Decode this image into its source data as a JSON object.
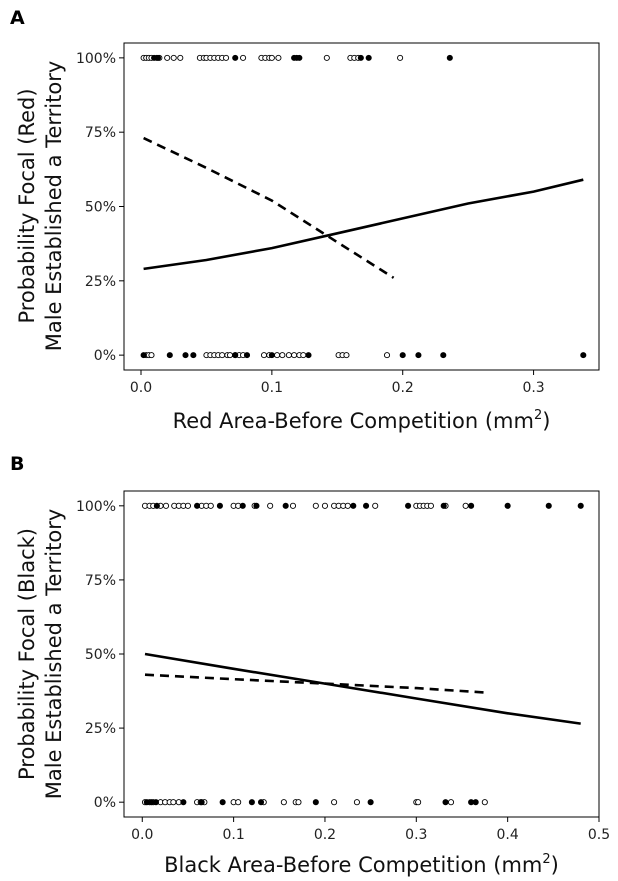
{
  "chart_data": [
    {
      "panel": "A",
      "type": "scatter",
      "xlabel": "Red Area-Before Competition (mm",
      "xlabel_sup": "2",
      "xlabel_end": ")",
      "ylabel_line1": "Probability Focal (Red)",
      "ylabel_line2": "Male Established a Territory",
      "xlim": [
        -0.013,
        0.35
      ],
      "ylim": [
        -0.05,
        1.05
      ],
      "xticks": [
        0.0,
        0.1,
        0.2,
        0.3
      ],
      "xtick_labels": [
        "0.0",
        "0.1",
        "0.2",
        "0.3"
      ],
      "yticks": [
        0,
        0.25,
        0.5,
        0.75,
        1.0
      ],
      "ytick_labels": [
        "0%",
        "25%",
        "50%",
        "75%",
        "100%"
      ],
      "grid": false,
      "series": [
        {
          "style": "open",
          "points": [
            [
              0.002,
              1
            ],
            [
              0.004,
              1
            ],
            [
              0.006,
              1
            ],
            [
              0.008,
              1
            ],
            [
              0.012,
              1
            ],
            [
              0.014,
              1
            ],
            [
              0.02,
              1
            ],
            [
              0.025,
              1
            ],
            [
              0.03,
              1
            ],
            [
              0.045,
              1
            ],
            [
              0.048,
              1
            ],
            [
              0.05,
              1
            ],
            [
              0.053,
              1
            ],
            [
              0.056,
              1
            ],
            [
              0.059,
              1
            ],
            [
              0.062,
              1
            ],
            [
              0.065,
              1
            ],
            [
              0.078,
              1
            ],
            [
              0.092,
              1
            ],
            [
              0.095,
              1
            ],
            [
              0.098,
              1
            ],
            [
              0.1,
              1
            ],
            [
              0.105,
              1
            ],
            [
              0.142,
              1
            ],
            [
              0.16,
              1
            ],
            [
              0.163,
              1
            ],
            [
              0.166,
              1
            ],
            [
              0.198,
              1
            ],
            [
              0.004,
              0
            ],
            [
              0.006,
              0
            ],
            [
              0.008,
              0
            ],
            [
              0.05,
              0
            ],
            [
              0.053,
              0
            ],
            [
              0.056,
              0
            ],
            [
              0.059,
              0
            ],
            [
              0.062,
              0
            ],
            [
              0.066,
              0
            ],
            [
              0.068,
              0
            ],
            [
              0.072,
              0
            ],
            [
              0.075,
              0
            ],
            [
              0.078,
              0
            ],
            [
              0.094,
              0
            ],
            [
              0.098,
              0
            ],
            [
              0.104,
              0
            ],
            [
              0.108,
              0
            ],
            [
              0.113,
              0
            ],
            [
              0.117,
              0
            ],
            [
              0.121,
              0
            ],
            [
              0.124,
              0
            ],
            [
              0.151,
              0
            ],
            [
              0.154,
              0
            ],
            [
              0.157,
              0
            ],
            [
              0.188,
              0
            ]
          ]
        },
        {
          "style": "filled",
          "points": [
            [
              0.01,
              1
            ],
            [
              0.013,
              1
            ],
            [
              0.072,
              1
            ],
            [
              0.117,
              1
            ],
            [
              0.119,
              1
            ],
            [
              0.121,
              1
            ],
            [
              0.168,
              1
            ],
            [
              0.174,
              1
            ],
            [
              0.236,
              1
            ],
            [
              0.002,
              0
            ],
            [
              0.022,
              0
            ],
            [
              0.034,
              0
            ],
            [
              0.04,
              0
            ],
            [
              0.072,
              0
            ],
            [
              0.081,
              0
            ],
            [
              0.1,
              0
            ],
            [
              0.128,
              0
            ],
            [
              0.2,
              0
            ],
            [
              0.212,
              0
            ],
            [
              0.231,
              0
            ],
            [
              0.338,
              0
            ]
          ]
        },
        {
          "style": "solid-line",
          "x": [
            0.002,
            0.05,
            0.1,
            0.15,
            0.2,
            0.25,
            0.3,
            0.338
          ],
          "y": [
            0.29,
            0.32,
            0.36,
            0.41,
            0.46,
            0.51,
            0.55,
            0.59
          ]
        },
        {
          "style": "dashed-line",
          "x": [
            0.002,
            0.05,
            0.1,
            0.15,
            0.193
          ],
          "y": [
            0.73,
            0.63,
            0.52,
            0.38,
            0.26
          ]
        }
      ]
    },
    {
      "panel": "B",
      "type": "scatter",
      "xlabel": "Black Area-Before Competition (mm",
      "xlabel_sup": "2",
      "xlabel_end": ")",
      "ylabel_line1": "Probability Focal (Black)",
      "ylabel_line2": "Male Established a Territory",
      "xlim": [
        -0.02,
        0.5
      ],
      "ylim": [
        -0.05,
        1.05
      ],
      "xticks": [
        0.0,
        0.1,
        0.2,
        0.3,
        0.4,
        0.5
      ],
      "xtick_labels": [
        "0.0",
        "0.1",
        "0.2",
        "0.3",
        "0.4",
        "0.5"
      ],
      "yticks": [
        0,
        0.25,
        0.5,
        0.75,
        1.0
      ],
      "ytick_labels": [
        "0%",
        "25%",
        "50%",
        "75%",
        "100%"
      ],
      "grid": false,
      "series": [
        {
          "style": "open",
          "points": [
            [
              0.003,
              1
            ],
            [
              0.008,
              1
            ],
            [
              0.012,
              1
            ],
            [
              0.02,
              1
            ],
            [
              0.026,
              1
            ],
            [
              0.035,
              1
            ],
            [
              0.04,
              1
            ],
            [
              0.045,
              1
            ],
            [
              0.05,
              1
            ],
            [
              0.065,
              1
            ],
            [
              0.07,
              1
            ],
            [
              0.075,
              1
            ],
            [
              0.1,
              1
            ],
            [
              0.105,
              1
            ],
            [
              0.123,
              1
            ],
            [
              0.14,
              1
            ],
            [
              0.165,
              1
            ],
            [
              0.19,
              1
            ],
            [
              0.2,
              1
            ],
            [
              0.21,
              1
            ],
            [
              0.215,
              1
            ],
            [
              0.22,
              1
            ],
            [
              0.225,
              1
            ],
            [
              0.255,
              1
            ],
            [
              0.3,
              1
            ],
            [
              0.304,
              1
            ],
            [
              0.308,
              1
            ],
            [
              0.312,
              1
            ],
            [
              0.316,
              1
            ],
            [
              0.332,
              1
            ],
            [
              0.354,
              1
            ],
            [
              0.003,
              0
            ],
            [
              0.008,
              0
            ],
            [
              0.012,
              0
            ],
            [
              0.02,
              0
            ],
            [
              0.025,
              0
            ],
            [
              0.03,
              0
            ],
            [
              0.034,
              0
            ],
            [
              0.04,
              0
            ],
            [
              0.06,
              0
            ],
            [
              0.064,
              0
            ],
            [
              0.068,
              0
            ],
            [
              0.1,
              0
            ],
            [
              0.105,
              0
            ],
            [
              0.133,
              0
            ],
            [
              0.155,
              0
            ],
            [
              0.168,
              0
            ],
            [
              0.171,
              0
            ],
            [
              0.21,
              0
            ],
            [
              0.235,
              0
            ],
            [
              0.3,
              0
            ],
            [
              0.302,
              0
            ],
            [
              0.338,
              0
            ],
            [
              0.375,
              0
            ]
          ]
        },
        {
          "style": "filled",
          "points": [
            [
              0.016,
              1
            ],
            [
              0.06,
              1
            ],
            [
              0.085,
              1
            ],
            [
              0.11,
              1
            ],
            [
              0.125,
              1
            ],
            [
              0.157,
              1
            ],
            [
              0.231,
              1
            ],
            [
              0.245,
              1
            ],
            [
              0.291,
              1
            ],
            [
              0.33,
              1
            ],
            [
              0.36,
              1
            ],
            [
              0.4,
              1
            ],
            [
              0.445,
              1
            ],
            [
              0.48,
              1
            ],
            [
              0.005,
              0
            ],
            [
              0.01,
              0
            ],
            [
              0.015,
              0
            ],
            [
              0.045,
              0
            ],
            [
              0.065,
              0
            ],
            [
              0.088,
              0
            ],
            [
              0.12,
              0
            ],
            [
              0.13,
              0
            ],
            [
              0.19,
              0
            ],
            [
              0.25,
              0
            ],
            [
              0.332,
              0
            ],
            [
              0.36,
              0
            ],
            [
              0.365,
              0
            ]
          ]
        },
        {
          "style": "solid-line",
          "x": [
            0.003,
            0.1,
            0.2,
            0.3,
            0.4,
            0.48
          ],
          "y": [
            0.5,
            0.45,
            0.4,
            0.35,
            0.3,
            0.265
          ]
        },
        {
          "style": "dashed-line",
          "x": [
            0.003,
            0.1,
            0.2,
            0.3,
            0.375
          ],
          "y": [
            0.43,
            0.415,
            0.4,
            0.385,
            0.37
          ]
        }
      ]
    }
  ]
}
